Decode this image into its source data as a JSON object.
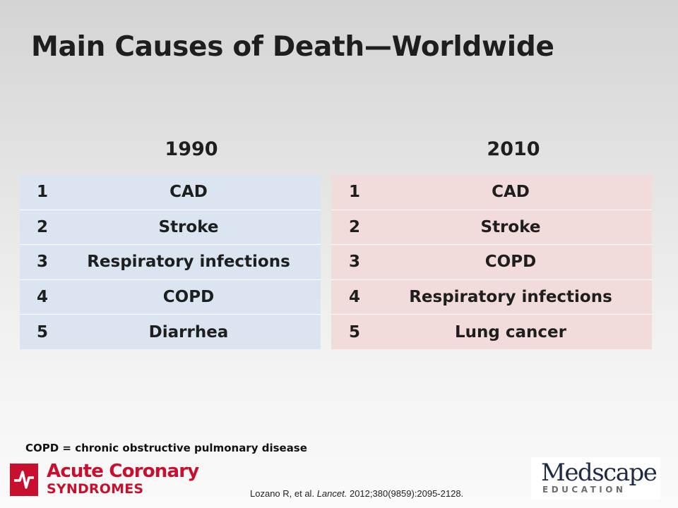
{
  "slide": {
    "title": "Main Causes of Death—Worldwide",
    "footnote": "COPD = chronic obstructive pulmonary disease"
  },
  "tables": [
    {
      "year": "1990",
      "color": "#dbe5f1",
      "rows": [
        {
          "rank": "1",
          "cause": "CAD"
        },
        {
          "rank": "2",
          "cause": "Stroke"
        },
        {
          "rank": "3",
          "cause": "Respiratory infections"
        },
        {
          "rank": "4",
          "cause": "COPD"
        },
        {
          "rank": "5",
          "cause": "Diarrhea"
        }
      ]
    },
    {
      "year": "2010",
      "color": "#f2dcdb",
      "rows": [
        {
          "rank": "1",
          "cause": "CAD"
        },
        {
          "rank": "2",
          "cause": "Stroke"
        },
        {
          "rank": "3",
          "cause": "COPD"
        },
        {
          "rank": "4",
          "cause": "Respiratory infections"
        },
        {
          "rank": "5",
          "cause": "Lung cancer"
        }
      ]
    }
  ],
  "citation": {
    "authors": "Lozano R, et al.",
    "journal": "Lancet.",
    "details": "2012;380(9859):2095-2128."
  },
  "logos": {
    "acs": {
      "line1": "Acute Coronary",
      "line2": "SYNDROMES",
      "color": "#c8102e"
    },
    "medscape": {
      "word": "Medscape",
      "sub": "EDUCATION"
    }
  }
}
